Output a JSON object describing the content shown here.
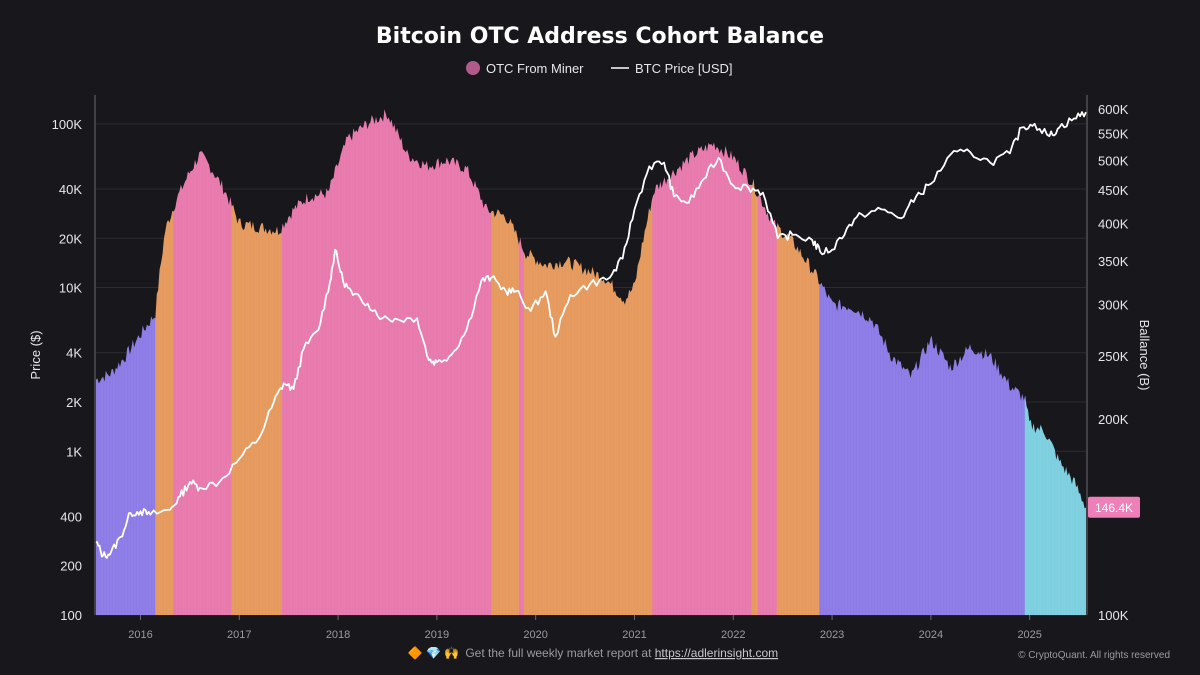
{
  "colors": {
    "background": "#18181c",
    "price_line": "#ffffff",
    "accumulation_pink": "#e879ad",
    "neutral_orange": "#e5995c",
    "distribution_purple": "#8c7ae6",
    "recent_cyan": "#7ccfe0",
    "legend_marker": "#b05b89",
    "badge": "#ef7fb8"
  },
  "chart_data": {
    "type": "area",
    "title": "Bitcoin OTC Address Cohort Balance",
    "legend": {
      "placement": "top-center",
      "items": [
        {
          "label": "OTC From Miner",
          "marker": "circle"
        },
        {
          "label": "BTC Price [USD]",
          "marker": "line"
        }
      ]
    },
    "x_axis": {
      "range": [
        "2015-07",
        "2025-07"
      ],
      "ticks": [
        "2016",
        "2017",
        "2018",
        "2019",
        "2020",
        "2021",
        "2022",
        "2023",
        "2024",
        "2025"
      ]
    },
    "y_left": {
      "label": "Price ($)",
      "scale": "log",
      "range": [
        100,
        150000
      ],
      "ticks": [
        {
          "label": "100K",
          "value": 100000
        },
        {
          "label": "40K",
          "value": 40000
        },
        {
          "label": "20K",
          "value": 20000
        },
        {
          "label": "10K",
          "value": 10000
        },
        {
          "label": "4K",
          "value": 4000
        },
        {
          "label": "2K",
          "value": 2000
        },
        {
          "label": "1K",
          "value": 1000
        },
        {
          "label": "400",
          "value": 400
        },
        {
          "label": "200",
          "value": 200
        },
        {
          "label": "100",
          "value": 100
        }
      ]
    },
    "y_right": {
      "label": "Ballance (B)",
      "scale": "log",
      "range": [
        100000,
        630000
      ],
      "ticks": [
        {
          "label": "600K",
          "value": 600000
        },
        {
          "label": "550K",
          "value": 550000
        },
        {
          "label": "500K",
          "value": 500000
        },
        {
          "label": "450K",
          "value": 450000
        },
        {
          "label": "400K",
          "value": 400000
        },
        {
          "label": "350K",
          "value": 350000
        },
        {
          "label": "300K",
          "value": 300000
        },
        {
          "label": "250K",
          "value": 250000
        },
        {
          "label": "200K",
          "value": 200000
        },
        {
          "label": "100K",
          "value": 100000
        }
      ]
    },
    "balance_series": {
      "name": "OTC From Miner",
      "points": [
        [
          2015.55,
          230000
        ],
        [
          2015.7,
          235000
        ],
        [
          2015.85,
          250000
        ],
        [
          2016.0,
          270000
        ],
        [
          2016.15,
          290000
        ],
        [
          2016.25,
          390000
        ],
        [
          2016.35,
          430000
        ],
        [
          2016.5,
          480000
        ],
        [
          2016.6,
          510000
        ],
        [
          2016.7,
          490000
        ],
        [
          2016.85,
          450000
        ],
        [
          2017.0,
          400000
        ],
        [
          2017.2,
          395000
        ],
        [
          2017.4,
          390000
        ],
        [
          2017.55,
          420000
        ],
        [
          2017.7,
          440000
        ],
        [
          2017.9,
          445000
        ],
        [
          2018.1,
          540000
        ],
        [
          2018.3,
          570000
        ],
        [
          2018.5,
          590000
        ],
        [
          2018.7,
          510000
        ],
        [
          2018.9,
          490000
        ],
        [
          2019.1,
          500000
        ],
        [
          2019.3,
          485000
        ],
        [
          2019.5,
          420000
        ],
        [
          2019.7,
          410000
        ],
        [
          2019.9,
          360000
        ],
        [
          2020.1,
          345000
        ],
        [
          2020.3,
          350000
        ],
        [
          2020.5,
          340000
        ],
        [
          2020.7,
          330000
        ],
        [
          2020.9,
          305000
        ],
        [
          2021.0,
          320000
        ],
        [
          2021.2,
          450000
        ],
        [
          2021.4,
          480000
        ],
        [
          2021.6,
          510000
        ],
        [
          2021.8,
          530000
        ],
        [
          2022.0,
          505000
        ],
        [
          2022.2,
          460000
        ],
        [
          2022.4,
          400000
        ],
        [
          2022.6,
          375000
        ],
        [
          2022.85,
          330000
        ],
        [
          2023.0,
          300000
        ],
        [
          2023.2,
          298000
        ],
        [
          2023.4,
          285000
        ],
        [
          2023.6,
          250000
        ],
        [
          2023.8,
          232000
        ],
        [
          2024.0,
          265000
        ],
        [
          2024.2,
          240000
        ],
        [
          2024.4,
          258000
        ],
        [
          2024.6,
          250000
        ],
        [
          2024.8,
          225000
        ],
        [
          2024.95,
          215000
        ],
        [
          2025.0,
          196000
        ],
        [
          2025.15,
          192000
        ],
        [
          2025.3,
          172000
        ],
        [
          2025.45,
          160000
        ],
        [
          2025.57,
          146400
        ]
      ]
    },
    "regimes": [
      {
        "start": 2015.55,
        "end": 2016.15,
        "color": "distribution_purple"
      },
      {
        "start": 2016.15,
        "end": 2016.33,
        "color": "neutral_orange"
      },
      {
        "start": 2016.33,
        "end": 2016.92,
        "color": "accumulation_pink"
      },
      {
        "start": 2016.92,
        "end": 2017.43,
        "color": "neutral_orange"
      },
      {
        "start": 2017.43,
        "end": 2019.55,
        "color": "accumulation_pink"
      },
      {
        "start": 2019.55,
        "end": 2019.83,
        "color": "neutral_orange"
      },
      {
        "start": 2019.83,
        "end": 2019.88,
        "color": "accumulation_pink"
      },
      {
        "start": 2019.88,
        "end": 2021.18,
        "color": "neutral_orange"
      },
      {
        "start": 2021.18,
        "end": 2022.18,
        "color": "accumulation_pink"
      },
      {
        "start": 2022.18,
        "end": 2022.25,
        "color": "neutral_orange"
      },
      {
        "start": 2022.25,
        "end": 2022.44,
        "color": "accumulation_pink"
      },
      {
        "start": 2022.44,
        "end": 2022.87,
        "color": "neutral_orange"
      },
      {
        "start": 2022.87,
        "end": 2024.95,
        "color": "distribution_purple"
      },
      {
        "start": 2024.95,
        "end": 2025.57,
        "color": "recent_cyan"
      }
    ],
    "price_series": {
      "name": "BTC Price [USD]",
      "points": [
        [
          2015.55,
          280
        ],
        [
          2015.62,
          230
        ],
        [
          2015.7,
          240
        ],
        [
          2015.8,
          300
        ],
        [
          2015.9,
          420
        ],
        [
          2016.0,
          430
        ],
        [
          2016.1,
          410
        ],
        [
          2016.3,
          440
        ],
        [
          2016.4,
          530
        ],
        [
          2016.5,
          650
        ],
        [
          2016.6,
          600
        ],
        [
          2016.8,
          650
        ],
        [
          2017.0,
          900
        ],
        [
          2017.2,
          1200
        ],
        [
          2017.35,
          2000
        ],
        [
          2017.45,
          2600
        ],
        [
          2017.55,
          2400
        ],
        [
          2017.65,
          4200
        ],
        [
          2017.8,
          5500
        ],
        [
          2017.92,
          11000
        ],
        [
          2017.97,
          17000
        ],
        [
          2018.05,
          11000
        ],
        [
          2018.15,
          9000
        ],
        [
          2018.3,
          8000
        ],
        [
          2018.45,
          6500
        ],
        [
          2018.6,
          6400
        ],
        [
          2018.8,
          6500
        ],
        [
          2018.92,
          3600
        ],
        [
          2019.0,
          3500
        ],
        [
          2019.15,
          3900
        ],
        [
          2019.3,
          5500
        ],
        [
          2019.45,
          11000
        ],
        [
          2019.55,
          11500
        ],
        [
          2019.7,
          9500
        ],
        [
          2019.8,
          9500
        ],
        [
          2019.95,
          7200
        ],
        [
          2020.1,
          9500
        ],
        [
          2020.2,
          5000
        ],
        [
          2020.35,
          9000
        ],
        [
          2020.55,
          10500
        ],
        [
          2020.75,
          11500
        ],
        [
          2020.88,
          15000
        ],
        [
          2021.0,
          30000
        ],
        [
          2021.15,
          55000
        ],
        [
          2021.3,
          58000
        ],
        [
          2021.4,
          36000
        ],
        [
          2021.55,
          33000
        ],
        [
          2021.7,
          46000
        ],
        [
          2021.85,
          62000
        ],
        [
          2022.0,
          42000
        ],
        [
          2022.15,
          41000
        ],
        [
          2022.3,
          38000
        ],
        [
          2022.45,
          20000
        ],
        [
          2022.6,
          21000
        ],
        [
          2022.8,
          19500
        ],
        [
          2022.88,
          16500
        ],
        [
          2023.0,
          17000
        ],
        [
          2023.15,
          23000
        ],
        [
          2023.3,
          28000
        ],
        [
          2023.5,
          30000
        ],
        [
          2023.7,
          26500
        ],
        [
          2023.85,
          36000
        ],
        [
          2024.0,
          43000
        ],
        [
          2024.2,
          65000
        ],
        [
          2024.4,
          67000
        ],
        [
          2024.6,
          58000
        ],
        [
          2024.8,
          66000
        ],
        [
          2024.92,
          95000
        ],
        [
          2025.05,
          100000
        ],
        [
          2025.2,
          84000
        ],
        [
          2025.3,
          95000
        ],
        [
          2025.45,
          108000
        ],
        [
          2025.57,
          118000
        ]
      ]
    },
    "last_value_label": "146.4K",
    "grid": true
  },
  "footer": {
    "emojis": "🔶 💎 🙌",
    "text": "Get the full weekly market report at ",
    "link": "https://adlerinsight.com",
    "copyright": "© CryptoQuant. All rights reserved"
  }
}
